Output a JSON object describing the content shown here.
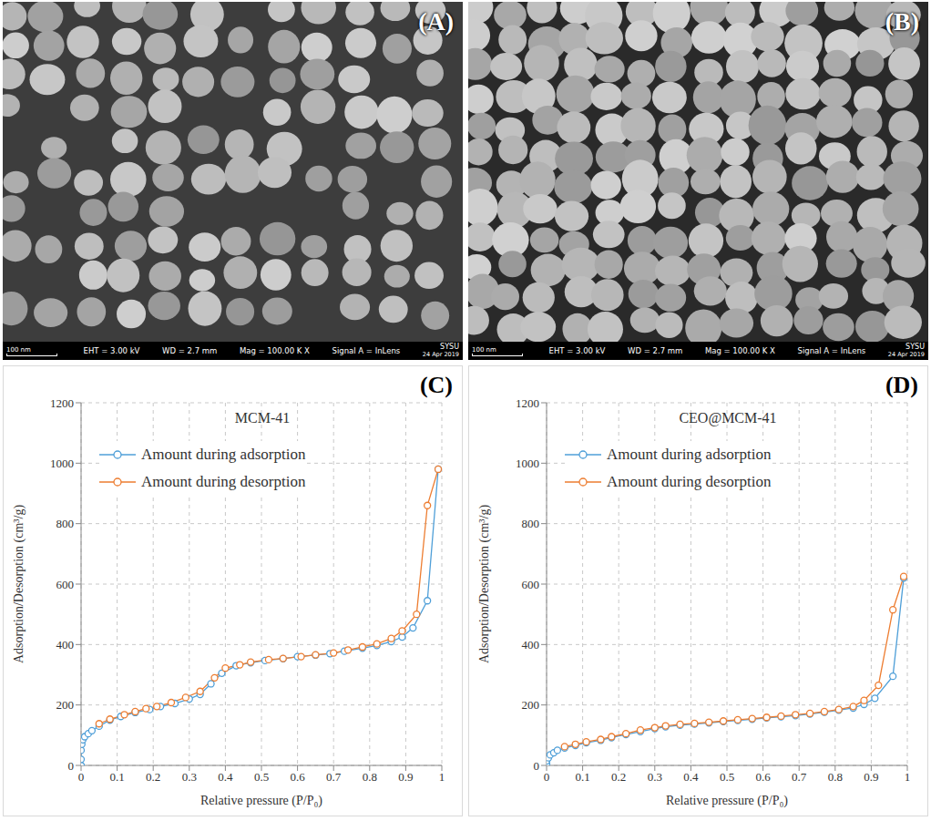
{
  "sem_images": [
    {
      "panel_label": "(A)",
      "scale_bar": "100 nm",
      "info": [
        "EHT = 3.00 kV",
        "WD = 2.7 mm",
        "Mag = 100.00 K X",
        "Signal A = InLens"
      ],
      "institution": "SYSU",
      "date": "24 Apr 2019"
    },
    {
      "panel_label": "(B)",
      "scale_bar": "100 nm",
      "info": [
        "EHT = 3.00 kV",
        "WD = 2.7 mm",
        "Mag = 100.00 K X",
        "Signal A = InLens"
      ],
      "institution": "SYSU",
      "date": "24 Apr 2019"
    }
  ],
  "chart_data": [
    {
      "type": "line",
      "panel_label": "(C)",
      "title": "MCM-41",
      "x_label": "Relative pressure (P/P₀)",
      "y_label": "Adsorption/Desorption (cm³/g)",
      "xlim": [
        0,
        1
      ],
      "xticks": [
        0,
        0.1,
        0.2,
        0.3,
        0.4,
        0.5,
        0.6,
        0.7,
        0.8,
        0.9,
        1
      ],
      "ylim": [
        0,
        1200
      ],
      "yticks": [
        0,
        200,
        400,
        600,
        800,
        1000,
        1200
      ],
      "grid": true,
      "legend": "upper left",
      "series": [
        {
          "name": "Amount during adsorption",
          "color": "#4f9fd8",
          "marker": "circle",
          "x": [
            0,
            0,
            0,
            0.002,
            0.005,
            0.01,
            0.02,
            0.03,
            0.05,
            0.08,
            0.11,
            0.15,
            0.19,
            0.22,
            0.26,
            0.3,
            0.33,
            0.36,
            0.39,
            0.43,
            0.47,
            0.51,
            0.56,
            0.6,
            0.65,
            0.69,
            0.73,
            0.78,
            0.82,
            0.86,
            0.89,
            0.92,
            0.96,
            0.99
          ],
          "values": [
            0,
            20,
            50,
            70,
            85,
            95,
            105,
            115,
            130,
            150,
            162,
            175,
            185,
            195,
            205,
            220,
            235,
            270,
            305,
            330,
            340,
            347,
            353,
            360,
            365,
            370,
            378,
            388,
            397,
            410,
            425,
            455,
            545,
            980
          ]
        },
        {
          "name": "Amount during desorption",
          "color": "#ed7d31",
          "marker": "circle",
          "x": [
            0.99,
            0.96,
            0.93,
            0.89,
            0.86,
            0.82,
            0.78,
            0.74,
            0.7,
            0.65,
            0.61,
            0.56,
            0.52,
            0.47,
            0.44,
            0.4,
            0.37,
            0.33,
            0.29,
            0.25,
            0.21,
            0.18,
            0.15,
            0.12,
            0.08,
            0.05
          ],
          "values": [
            980,
            860,
            500,
            445,
            420,
            402,
            392,
            382,
            372,
            366,
            360,
            354,
            350,
            342,
            333,
            322,
            290,
            245,
            225,
            208,
            195,
            188,
            178,
            168,
            153,
            138
          ]
        }
      ]
    },
    {
      "type": "line",
      "panel_label": "(D)",
      "title": "CEO@MCM-41",
      "x_label": "Relative pressure (P/P₀)",
      "y_label": "Adsorption/Desorption (cm³/g)",
      "xlim": [
        0,
        1
      ],
      "xticks": [
        0,
        0.1,
        0.2,
        0.3,
        0.4,
        0.5,
        0.6,
        0.7,
        0.8,
        0.9,
        1
      ],
      "ylim": [
        0,
        1200
      ],
      "yticks": [
        0,
        200,
        400,
        600,
        800,
        1000,
        1200
      ],
      "grid": true,
      "legend": "upper left",
      "series": [
        {
          "name": "Amount during adsorption",
          "color": "#4f9fd8",
          "marker": "circle",
          "x": [
            0,
            0,
            0.005,
            0.01,
            0.02,
            0.03,
            0.05,
            0.08,
            0.11,
            0.15,
            0.18,
            0.22,
            0.26,
            0.3,
            0.33,
            0.37,
            0.41,
            0.45,
            0.49,
            0.53,
            0.57,
            0.61,
            0.65,
            0.69,
            0.73,
            0.77,
            0.81,
            0.85,
            0.88,
            0.91,
            0.96,
            0.99
          ],
          "values": [
            5,
            15,
            25,
            35,
            42,
            50,
            58,
            66,
            75,
            83,
            92,
            102,
            112,
            122,
            128,
            133,
            137,
            141,
            145,
            149,
            153,
            157,
            161,
            165,
            170,
            176,
            183,
            190,
            202,
            222,
            295,
            620
          ]
        },
        {
          "name": "Amount during desorption",
          "color": "#ed7d31",
          "marker": "circle",
          "x": [
            0.99,
            0.96,
            0.92,
            0.88,
            0.85,
            0.81,
            0.77,
            0.73,
            0.69,
            0.65,
            0.61,
            0.57,
            0.53,
            0.49,
            0.45,
            0.41,
            0.37,
            0.33,
            0.3,
            0.26,
            0.22,
            0.18,
            0.15,
            0.11,
            0.08,
            0.05
          ],
          "values": [
            625,
            515,
            265,
            215,
            195,
            185,
            178,
            172,
            168,
            163,
            159,
            155,
            151,
            147,
            143,
            139,
            136,
            131,
            125,
            117,
            105,
            95,
            86,
            78,
            70,
            62
          ]
        }
      ]
    }
  ]
}
